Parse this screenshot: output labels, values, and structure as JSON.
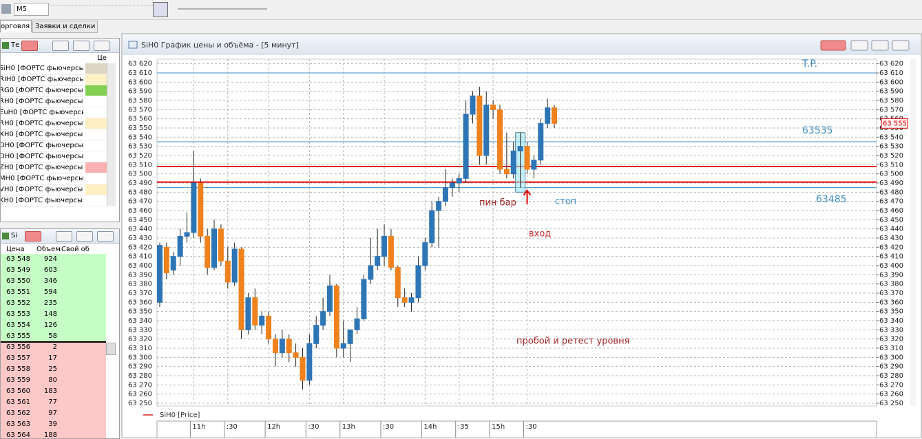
{
  "toolbar": {
    "timeframe": "M5"
  },
  "tabs": [
    "орговля",
    "Заявки и сделки"
  ],
  "instruments_panel": {
    "title": "Те",
    "column": "Це",
    "rows": [
      {
        "name": "SiH0 [ФОРТС фьючерсы]",
        "color": "#ddd6c2"
      },
      {
        "name": "RIH0 [ФОРТС фьючерсы]",
        "color": "#fdf0c2"
      },
      {
        "name": "RG0 [ФОРТС фьючерсы]",
        "color": "#84d052"
      },
      {
        "name": "RH0 [ФОРТС фьючерсы]"
      },
      {
        "name": "EuH0 [ФОРТС фьючерсы]"
      },
      {
        "name": "RH0 [ФОРТС фьючерсы]",
        "color": "#fdf0c2"
      },
      {
        "name": "XH0 [ФОРТС фьючерсы]"
      },
      {
        "name": "DH0 [ФОРТС фьючерсы]"
      },
      {
        "name": "DH0 [ФОРТС фьючерсы]"
      },
      {
        "name": "ZH0 [ФОРТС фьючерсы]",
        "color": "#ffb0b0"
      },
      {
        "name": "MH0 [ФОРТС фьючерсы]"
      },
      {
        "name": "VH0 [ФОРТС фьючерсы]",
        "color": "#fdf0c2"
      },
      {
        "name": "KH0 [ФОРТС фьючерсы]"
      }
    ]
  },
  "orderbook": {
    "title": "Si",
    "columns": [
      "Цена",
      "Объем",
      "Свой об"
    ],
    "rows": [
      {
        "price": "63 548",
        "volume": "924",
        "color": "#c6ffc6"
      },
      {
        "price": "63 549",
        "volume": "603",
        "color": "#c6ffc6"
      },
      {
        "price": "63 550",
        "volume": "346",
        "color": "#c6ffc6"
      },
      {
        "price": "63 551",
        "volume": "594",
        "color": "#c6ffc6"
      },
      {
        "price": "63 552",
        "volume": "235",
        "color": "#c6ffc6"
      },
      {
        "price": "63 553",
        "volume": "148",
        "color": "#c6ffc6"
      },
      {
        "price": "63 554",
        "volume": "126",
        "color": "#c6ffc6"
      },
      {
        "price": "63 555",
        "volume": "58",
        "color": "#c6ffc6"
      },
      {
        "price": "63 556",
        "volume": "2",
        "color": "#ffc8c8"
      },
      {
        "price": "63 557",
        "volume": "17",
        "color": "#ffc8c8"
      },
      {
        "price": "63 558",
        "volume": "25",
        "color": "#ffc8c8"
      },
      {
        "price": "63 559",
        "volume": "80",
        "color": "#ffc8c8"
      },
      {
        "price": "63 560",
        "volume": "183",
        "color": "#ffc8c8"
      },
      {
        "price": "63 561",
        "volume": "77",
        "color": "#ffc8c8"
      },
      {
        "price": "63 562",
        "volume": "97",
        "color": "#ffc8c8"
      },
      {
        "price": "63 563",
        "volume": "39",
        "color": "#ffc8c8"
      },
      {
        "price": "63 564",
        "volume": "188",
        "color": "#ffc8c8"
      }
    ]
  },
  "chart_data": {
    "type": "candlestick",
    "title": "SiH0 График цены и объёма - [5 минут]",
    "legend": "SiH0 [Price]",
    "legend_color": "#d02020",
    "up_color": "#2e75b6",
    "down_color": "#f0821e",
    "grid": true,
    "categories": [
      null,
      null,
      null,
      null,
      null,
      "11h",
      null,
      null,
      null,
      null,
      ":30",
      null,
      null,
      null,
      null,
      null,
      "12h",
      null,
      null,
      null,
      null,
      null,
      ":30",
      null,
      null,
      null,
      null,
      "13h",
      null,
      null,
      null,
      null,
      null,
      ":30",
      null,
      null,
      null,
      null,
      null,
      "14h",
      null,
      null,
      null,
      null,
      ":35",
      null,
      null,
      null,
      null,
      "15h",
      null,
      null,
      null,
      null,
      ":30",
      null,
      null,
      null,
      null
    ],
    "open": [
      63360,
      63420,
      63395,
      63410,
      63432,
      63436,
      63490,
      63432,
      63398,
      63440,
      63405,
      63382,
      63418,
      63330,
      63365,
      63335,
      63345,
      63320,
      63305,
      63320,
      63305,
      63300,
      63275,
      63315,
      63335,
      63350,
      63378,
      63310,
      63315,
      63330,
      63342,
      63385,
      63400,
      63410,
      63432,
      63398,
      63365,
      63360,
      63365,
      63400,
      63425,
      63460,
      63470,
      63485,
      63490,
      63495,
      63565,
      63585,
      63520,
      63575,
      63570,
      63505,
      63500,
      63525,
      63530,
      63505,
      63515,
      63555,
      63572
    ],
    "high": [
      63425,
      63425,
      63415,
      63440,
      63458,
      63525,
      63495,
      63440,
      63450,
      63445,
      63420,
      63425,
      63420,
      63370,
      63375,
      63350,
      63350,
      63325,
      63330,
      63325,
      63315,
      63310,
      63325,
      63345,
      63365,
      63390,
      63380,
      63340,
      63330,
      63355,
      63390,
      63430,
      63440,
      63445,
      63440,
      63400,
      63375,
      63370,
      63410,
      63430,
      63470,
      63475,
      63505,
      63495,
      63500,
      63580,
      63590,
      63595,
      63590,
      63580,
      63575,
      63545,
      63535,
      63545,
      63535,
      63520,
      63560,
      63582,
      63575
    ],
    "low": [
      63355,
      63385,
      63390,
      63400,
      63425,
      63430,
      63425,
      63390,
      63395,
      63400,
      63375,
      63378,
      63320,
      63325,
      63330,
      63325,
      63315,
      63290,
      63300,
      63295,
      63290,
      63265,
      63270,
      63310,
      63330,
      63345,
      63300,
      63300,
      63295,
      63325,
      63340,
      63380,
      63395,
      63400,
      63395,
      63355,
      63355,
      63350,
      63360,
      63395,
      63420,
      63420,
      63465,
      63475,
      63480,
      63490,
      63555,
      63510,
      63510,
      63560,
      63500,
      63495,
      63495,
      63485,
      63500,
      63495,
      63510,
      63550,
      63550
    ],
    "close": [
      63422,
      63392,
      63410,
      63432,
      63436,
      63490,
      63432,
      63398,
      63440,
      63405,
      63382,
      63418,
      63330,
      63365,
      63335,
      63345,
      63320,
      63305,
      63320,
      63305,
      63300,
      63275,
      63315,
      63335,
      63350,
      63378,
      63310,
      63315,
      63330,
      63342,
      63385,
      63400,
      63410,
      63432,
      63398,
      63365,
      63360,
      63365,
      63400,
      63425,
      63460,
      63470,
      63485,
      63490,
      63495,
      63565,
      63585,
      63520,
      63575,
      63570,
      63505,
      63500,
      63525,
      63530,
      63505,
      63515,
      63555,
      63572,
      63555
    ],
    "ylim": [
      63247,
      63625
    ],
    "yticks": [
      {
        "value": 63250,
        "label": "63 250"
      },
      {
        "value": 63260,
        "label": "63 260"
      },
      {
        "value": 63270,
        "label": "63 270"
      },
      {
        "value": 63280,
        "label": "63 280"
      },
      {
        "value": 63290,
        "label": "63 290"
      },
      {
        "value": 63300,
        "label": "63 300"
      },
      {
        "value": 63310,
        "label": "63 310"
      },
      {
        "value": 63320,
        "label": "63 320"
      },
      {
        "value": 63330,
        "label": "63 330"
      },
      {
        "value": 63340,
        "label": "63 340"
      },
      {
        "value": 63350,
        "label": "63 350"
      },
      {
        "value": 63360,
        "label": "63 360"
      },
      {
        "value": 63370,
        "label": "63 370"
      },
      {
        "value": 63380,
        "label": "63 380"
      },
      {
        "value": 63390,
        "label": "63 390"
      },
      {
        "value": 63400,
        "label": "63 400"
      },
      {
        "value": 63410,
        "label": "63 410"
      },
      {
        "value": 63420,
        "label": "63 420"
      },
      {
        "value": 63430,
        "label": "63 430"
      },
      {
        "value": 63440,
        "label": "63 440"
      },
      {
        "value": 63450,
        "label": "63 450"
      },
      {
        "value": 63460,
        "label": "63 460"
      },
      {
        "value": 63470,
        "label": "63 470"
      },
      {
        "value": 63480,
        "label": "63 480"
      },
      {
        "value": 63490,
        "label": "63 490"
      },
      {
        "value": 63500,
        "label": "63 500"
      },
      {
        "value": 63510,
        "label": "63 510"
      },
      {
        "value": 63520,
        "label": "63 520"
      },
      {
        "value": 63530,
        "label": "63 530"
      },
      {
        "value": 63540,
        "label": "63 540"
      },
      {
        "value": 63550,
        "label": "63 550"
      },
      {
        "value": 63560,
        "label": "63 560"
      },
      {
        "value": 63570,
        "label": "63 570"
      },
      {
        "value": 63580,
        "label": "63 580"
      },
      {
        "value": 63590,
        "label": "63 590"
      },
      {
        "value": 63600,
        "label": "63 600"
      },
      {
        "value": 63610,
        "label": "63 610"
      },
      {
        "value": 63620,
        "label": "63 620"
      }
    ],
    "last_price": {
      "value": 63555,
      "label": "63 555"
    },
    "levels": [
      {
        "value": 63610,
        "label": "T.P.",
        "color": "#3c8dc8"
      },
      {
        "value": 63535,
        "label": "63535",
        "color": "#3c8dc8"
      },
      {
        "value": 63485,
        "label": "63485",
        "color": "#3c8dc8"
      },
      {
        "value": 63508,
        "color": "#e00000"
      },
      {
        "value": 63491,
        "color": "#e00000"
      }
    ],
    "annotations": [
      {
        "text": "пин бар",
        "color": "#a02020"
      },
      {
        "text": "стоп",
        "color": "#3c8dc8"
      },
      {
        "text": "вход",
        "color": "#d03030"
      },
      {
        "text": "пробой и ретест уровня",
        "color": "#a02020"
      }
    ]
  }
}
